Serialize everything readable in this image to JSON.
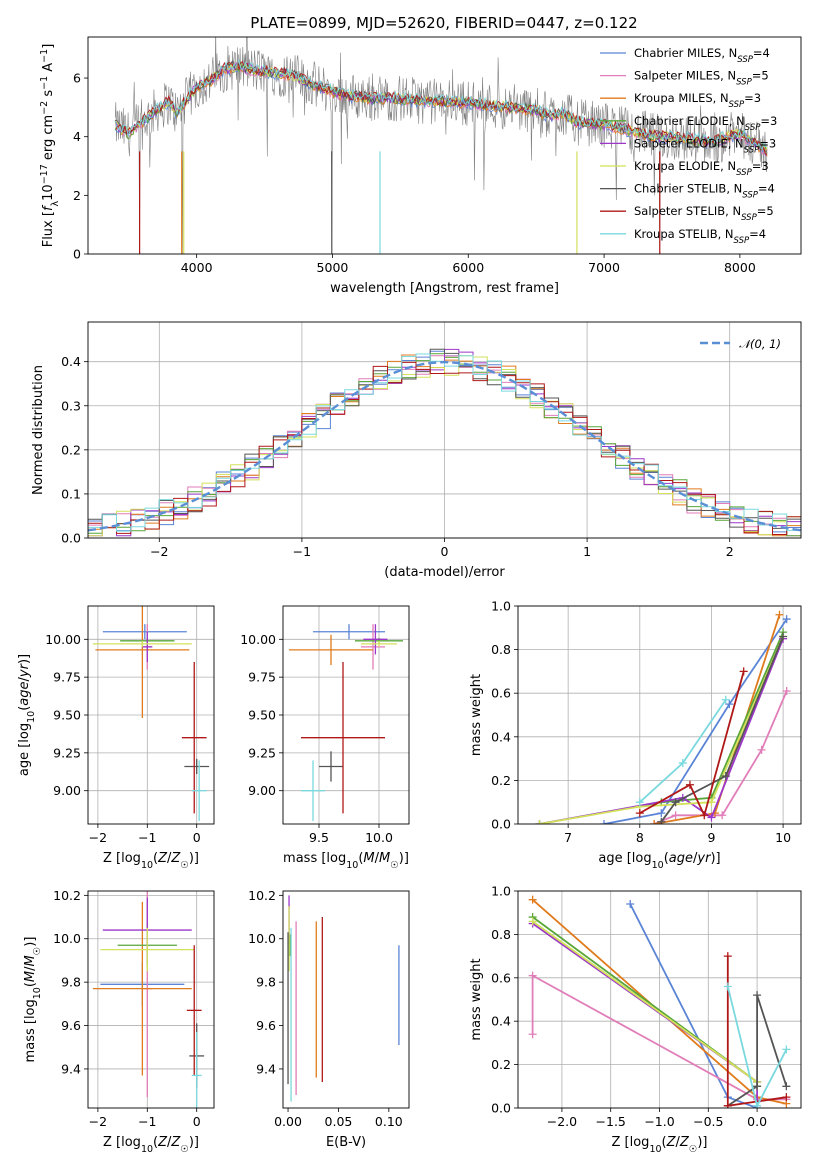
{
  "title": "PLATE=0899, MJD=52620, FIBERID=0447, z=0.122",
  "colors": {
    "Chabrier MILES": "#5b84d6",
    "Salpeter MILES": "#e17db8",
    "Kroupa MILES": "#e07b1d",
    "Chabrier ELODIE": "#59a63a",
    "Salpeter ELODIE": "#9c37c9",
    "Kroupa ELODIE": "#d3e15b",
    "Chabrier STELIB": "#555555",
    "Salpeter STELIB": "#b01818",
    "Kroupa STELIB": "#7ad9df",
    "data": "#808080",
    "normal": "#5b8fd5"
  },
  "chart_data": [
    {
      "id": "spectrum",
      "type": "line",
      "title": "PLATE=0899, MJD=52620, FIBERID=0447, z=0.122",
      "xlabel": "wavelength [Angstrom, rest frame]",
      "ylabel": "Flux [f_λ10⁻¹⁷ erg cm⁻² s⁻¹ A⁻¹]",
      "xlim": [
        3200,
        8450
      ],
      "ylim": [
        0,
        7.4
      ],
      "xticks": [
        4000,
        5000,
        6000,
        7000,
        8000
      ],
      "yticks": [
        0,
        2,
        4,
        6
      ],
      "grid": false,
      "legend_position": "top-right",
      "legend": [
        {
          "series": "Chabrier MILES",
          "base": "Chabrier MILES, N",
          "sub": "SSP",
          "tail": "=4"
        },
        {
          "series": "Salpeter MILES",
          "base": "Salpeter MILES, N",
          "sub": "SSP",
          "tail": "=5"
        },
        {
          "series": "Kroupa MILES",
          "base": "Kroupa MILES, N",
          "sub": "SSP",
          "tail": "=3"
        },
        {
          "series": "Chabrier ELODIE",
          "base": "Chabrier ELODIE, N",
          "sub": "SSP",
          "tail": "=3"
        },
        {
          "series": "Salpeter ELODIE",
          "base": "Salpeter ELODIE, N",
          "sub": "SSP",
          "tail": "=3"
        },
        {
          "series": "Kroupa ELODIE",
          "base": "Kroupa ELODIE, N",
          "sub": "SSP",
          "tail": "=3"
        },
        {
          "series": "Chabrier STELIB",
          "base": "Chabrier STELIB, N",
          "sub": "SSP",
          "tail": "=4"
        },
        {
          "series": "Salpeter STELIB",
          "base": "Salpeter STELIB, N",
          "sub": "SSP",
          "tail": "=5"
        },
        {
          "series": "Kroupa STELIB",
          "base": "Kroupa STELIB, N",
          "sub": "SSP",
          "tail": "=4"
        }
      ],
      "continuum_x": [
        3400,
        3500,
        3600,
        3700,
        3800,
        3850,
        3950,
        4000,
        4100,
        4200,
        4300,
        4400,
        4500,
        4700,
        4900,
        5100,
        5300,
        5500,
        5700,
        5900,
        6100,
        6300,
        6500,
        6600,
        6700,
        6800,
        7000,
        7200,
        7400,
        7600,
        7800,
        7900,
        8000,
        8200
      ],
      "continuum_y": [
        4.4,
        4.1,
        4.5,
        4.9,
        5.2,
        4.8,
        5.4,
        5.7,
        5.9,
        6.3,
        6.4,
        6.3,
        6.2,
        6.1,
        5.7,
        5.4,
        5.3,
        5.3,
        5.2,
        5.2,
        5.1,
        5.0,
        4.9,
        4.7,
        4.8,
        4.5,
        4.4,
        4.2,
        4.0,
        3.95,
        3.8,
        4.0,
        4.1,
        3.5
      ],
      "absorption_spikes": [
        {
          "x": 3580,
          "series": "Salpeter STELIB"
        },
        {
          "x": 3890,
          "series": "Kroupa MILES"
        },
        {
          "x": 3905,
          "series": "Kroupa ELODIE"
        },
        {
          "x": 4995,
          "series": "Chabrier STELIB"
        },
        {
          "x": 5350,
          "series": "Kroupa STELIB"
        },
        {
          "x": 6800,
          "series": "Kroupa ELODIE"
        },
        {
          "x": 7410,
          "series": "Salpeter STELIB"
        }
      ]
    },
    {
      "id": "residuals",
      "type": "line",
      "xlabel": "(data-model)/error",
      "ylabel": "Normed distribution",
      "xlim": [
        -2.5,
        2.5
      ],
      "ylim": [
        0,
        0.49
      ],
      "xticks": [
        -2,
        -1,
        0,
        1,
        2
      ],
      "yticks": [
        0.0,
        0.1,
        0.2,
        0.3,
        0.4
      ],
      "grid": true,
      "legend_position": "top-right",
      "legend_label": "𝒩(0, 1)",
      "bin_width": 0.1,
      "bins_start": -2.5
    },
    {
      "id": "age-vs-Z",
      "type": "scatter",
      "xlabel": "Z [log10(Z/Z☉)]",
      "ylabel": "age  [log10(age/yr)]",
      "xlim": [
        -2.2,
        0.35
      ],
      "ylim": [
        8.78,
        10.22
      ],
      "xticks": [
        -2,
        -1,
        0
      ],
      "yticks": [
        9.0,
        9.25,
        9.5,
        9.75,
        10.0
      ],
      "grid": true,
      "points": [
        {
          "series": "Chabrier MILES",
          "x": -1.05,
          "xerr": 0.85,
          "y": 10.05,
          "yerr": 0.05
        },
        {
          "series": "Salpeter MILES",
          "x": -1.0,
          "xerr": 0.1,
          "y": 9.95,
          "yerr": 0.15
        },
        {
          "series": "Kroupa MILES",
          "x": -1.1,
          "xerr": 0.95,
          "y": 9.93,
          "yerr": 0.45
        },
        {
          "series": "Chabrier ELODIE",
          "x": -1.0,
          "xerr": 0.55,
          "y": 9.99,
          "yerr": 0.02
        },
        {
          "series": "Salpeter ELODIE",
          "x": -1.0,
          "xerr": 0.1,
          "y": 9.95,
          "yerr": 0.1
        },
        {
          "series": "Kroupa ELODIE",
          "x": -1.1,
          "xerr": 1.0,
          "y": 9.97,
          "yerr": 0.02
        },
        {
          "series": "Chabrier STELIB",
          "x": 0.0,
          "xerr": 0.25,
          "y": 9.16,
          "yerr": 0.05
        },
        {
          "series": "Salpeter STELIB",
          "x": -0.05,
          "xerr": 0.25,
          "y": 9.35,
          "yerr": 0.5
        },
        {
          "series": "Kroupa STELIB",
          "x": 0.05,
          "xerr": 0.15,
          "y": 9.0,
          "yerr": 0.2
        }
      ]
    },
    {
      "id": "age-vs-mass",
      "type": "scatter",
      "xlabel": "mass [log10(M/M☉)]",
      "ylabel": "",
      "xlim": [
        9.2,
        10.25
      ],
      "ylim": [
        8.78,
        10.22
      ],
      "xticks": [
        9.5,
        10.0
      ],
      "yticks": [
        9.0,
        9.25,
        9.5,
        9.75,
        10.0
      ],
      "grid": true,
      "points": [
        {
          "series": "Chabrier MILES",
          "x": 9.75,
          "xerr": 0.3,
          "y": 10.05,
          "yerr": 0.05
        },
        {
          "series": "Salpeter MILES",
          "x": 9.95,
          "xerr": 0.1,
          "y": 9.95,
          "yerr": 0.15
        },
        {
          "series": "Kroupa MILES",
          "x": 9.6,
          "xerr": 0.35,
          "y": 9.93,
          "yerr": 0.1
        },
        {
          "series": "Chabrier ELODIE",
          "x": 10.0,
          "xerr": 0.2,
          "y": 9.99,
          "yerr": 0.02
        },
        {
          "series": "Salpeter ELODIE",
          "x": 9.97,
          "xerr": 0.1,
          "y": 10.0,
          "yerr": 0.1
        },
        {
          "series": "Kroupa ELODIE",
          "x": 10.0,
          "xerr": 0.15,
          "y": 9.97,
          "yerr": 0.02
        },
        {
          "series": "Chabrier STELIB",
          "x": 9.6,
          "xerr": 0.1,
          "y": 9.16,
          "yerr": 0.1
        },
        {
          "series": "Salpeter STELIB",
          "x": 9.7,
          "xerr": 0.35,
          "y": 9.35,
          "yerr": 0.5
        },
        {
          "series": "Kroupa STELIB",
          "x": 9.45,
          "xerr": 0.1,
          "y": 9.0,
          "yerr": 0.2
        }
      ]
    },
    {
      "id": "mass-weight-vs-age",
      "type": "line",
      "xlabel": "age  [log10(age/yr)]",
      "ylabel": "mass weight",
      "xlim": [
        6.3,
        10.25
      ],
      "ylim": [
        0,
        1.0
      ],
      "xticks": [
        7,
        8,
        9,
        10
      ],
      "yticks": [
        0.0,
        0.2,
        0.4,
        0.6,
        0.8,
        1.0
      ],
      "grid": true,
      "series": [
        {
          "name": "Chabrier MILES",
          "x": [
            7.5,
            8.3,
            9.25,
            10.05
          ],
          "y": [
            0.0,
            0.05,
            0.55,
            0.94
          ]
        },
        {
          "name": "Salpeter MILES",
          "x": [
            8.2,
            8.5,
            9.15,
            9.7,
            10.05
          ],
          "y": [
            0.0,
            0.04,
            0.04,
            0.34,
            0.61
          ]
        },
        {
          "name": "Kroupa MILES",
          "x": [
            8.2,
            9.05,
            9.95
          ],
          "y": [
            0.0,
            0.05,
            0.96
          ]
        },
        {
          "name": "Chabrier ELODIE",
          "x": [
            6.6,
            8.3,
            9.0,
            10.0
          ],
          "y": [
            0.0,
            0.1,
            0.12,
            0.88
          ]
        },
        {
          "name": "Salpeter ELODIE",
          "x": [
            6.6,
            8.6,
            9.0,
            10.0
          ],
          "y": [
            0.0,
            0.12,
            0.03,
            0.85
          ]
        },
        {
          "name": "Kroupa ELODIE",
          "x": [
            6.6,
            8.0,
            9.0,
            10.0
          ],
          "y": [
            0.0,
            0.08,
            0.1,
            0.86
          ]
        },
        {
          "name": "Chabrier STELIB",
          "x": [
            8.3,
            8.5,
            9.2,
            10.0
          ],
          "y": [
            0.01,
            0.1,
            0.22,
            0.86
          ]
        },
        {
          "name": "Salpeter STELIB",
          "x": [
            8.0,
            8.7,
            8.9,
            9.45
          ],
          "y": [
            0.05,
            0.18,
            0.04,
            0.7
          ]
        },
        {
          "name": "Kroupa STELIB",
          "x": [
            8.0,
            8.6,
            9.2
          ],
          "y": [
            0.1,
            0.28,
            0.57
          ]
        }
      ]
    },
    {
      "id": "mass-vs-Z",
      "type": "scatter",
      "xlabel": "Z [log10(Z/Z☉)]",
      "ylabel": "mass [log10(M/M☉)]",
      "xlim": [
        -2.2,
        0.35
      ],
      "ylim": [
        9.22,
        10.22
      ],
      "xticks": [
        -2,
        -1,
        0
      ],
      "yticks": [
        9.4,
        9.6,
        9.8,
        10.0,
        10.2
      ],
      "grid": true,
      "points": [
        {
          "series": "Chabrier MILES",
          "x": -1.1,
          "xerr": 0.85,
          "y": 9.79,
          "yerr": 0.1
        },
        {
          "series": "Salpeter MILES",
          "x": -1.0,
          "xerr": 0.1,
          "y": 9.77,
          "yerr": 0.5
        },
        {
          "series": "Kroupa MILES",
          "x": -1.1,
          "xerr": 1.0,
          "y": 9.77,
          "yerr": 0.4
        },
        {
          "series": "Chabrier ELODIE",
          "x": -1.0,
          "xerr": 0.6,
          "y": 9.97,
          "yerr": 0.1
        },
        {
          "series": "Salpeter ELODIE",
          "x": -1.0,
          "xerr": 0.9,
          "y": 10.04,
          "yerr": 0.15
        },
        {
          "series": "Kroupa ELODIE",
          "x": -1.0,
          "xerr": 0.95,
          "y": 9.95,
          "yerr": 0.1
        },
        {
          "series": "Chabrier STELIB",
          "x": 0.0,
          "xerr": 0.15,
          "y": 9.46,
          "yerr": 0.15
        },
        {
          "series": "Salpeter STELIB",
          "x": -0.05,
          "xerr": 0.15,
          "y": 9.67,
          "yerr": 0.3
        },
        {
          "series": "Kroupa STELIB",
          "x": 0.0,
          "xerr": 0.1,
          "y": 9.37,
          "yerr": 0.2
        }
      ]
    },
    {
      "id": "mass-vs-EBV",
      "type": "scatter",
      "xlabel": "E(B-V)",
      "ylabel": "",
      "xlim": [
        -0.005,
        0.12
      ],
      "ylim": [
        9.22,
        10.22
      ],
      "xticks": [
        0.0,
        0.05,
        0.1
      ],
      "yticks": [
        9.4,
        9.6,
        9.8,
        10.0,
        10.2
      ],
      "grid": false,
      "points": [
        {
          "series": "Chabrier MILES",
          "x": 0.11,
          "y": 9.74,
          "yerr": 0.23
        },
        {
          "series": "Salpeter MILES",
          "x": 0.008,
          "y": 9.68,
          "yerr": 0.4
        },
        {
          "series": "Kroupa MILES",
          "x": 0.028,
          "y": 9.72,
          "yerr": 0.36
        },
        {
          "series": "Chabrier ELODIE",
          "x": 0.002,
          "y": 9.97,
          "yerr": 0.05
        },
        {
          "series": "Salpeter ELODIE",
          "x": 0.001,
          "y": 10.1,
          "yerr": 0.1
        },
        {
          "series": "Kroupa ELODIE",
          "x": 0.001,
          "y": 10.0,
          "yerr": 0.15
        },
        {
          "series": "Chabrier STELIB",
          "x": 0.0,
          "y": 9.68,
          "yerr": 0.35
        },
        {
          "series": "Salpeter STELIB",
          "x": 0.034,
          "y": 9.72,
          "yerr": 0.38
        },
        {
          "series": "Kroupa STELIB",
          "x": 0.003,
          "y": 9.65,
          "yerr": 0.4
        }
      ]
    },
    {
      "id": "mass-weight-vs-Z",
      "type": "line",
      "xlabel": "Z [log10(Z/Z☉)]",
      "ylabel": "mass weight",
      "xlim": [
        -2.45,
        0.45
      ],
      "ylim": [
        0,
        1.0
      ],
      "xticks": [
        -2.0,
        -1.5,
        -1.0,
        -0.5,
        0.0
      ],
      "yticks": [
        0.0,
        0.2,
        0.4,
        0.6,
        0.8,
        1.0
      ],
      "grid": true,
      "series": [
        {
          "name": "Chabrier MILES",
          "x": [
            -1.3,
            -0.3,
            0.0
          ],
          "y": [
            0.94,
            0.05,
            0.0
          ]
        },
        {
          "name": "Salpeter MILES",
          "x": [
            -2.3,
            -2.3,
            0.0,
            0.3
          ],
          "y": [
            0.34,
            0.61,
            0.04,
            0.04
          ]
        },
        {
          "name": "Kroupa MILES",
          "x": [
            -2.3,
            0.0,
            0.3
          ],
          "y": [
            0.96,
            0.05,
            0.02
          ]
        },
        {
          "name": "Chabrier ELODIE",
          "x": [
            -2.3,
            0.0,
            0.0
          ],
          "y": [
            0.88,
            0.12,
            0.1
          ]
        },
        {
          "name": "Salpeter ELODIE",
          "x": [
            -2.3,
            0.0,
            0.0
          ],
          "y": [
            0.85,
            0.12,
            0.03
          ]
        },
        {
          "name": "Kroupa ELODIE",
          "x": [
            -2.3,
            0.0,
            0.0
          ],
          "y": [
            0.86,
            0.12,
            0.1
          ]
        },
        {
          "name": "Chabrier STELIB",
          "x": [
            -0.3,
            0.0,
            0.0,
            0.3
          ],
          "y": [
            0.01,
            0.1,
            0.52,
            0.1
          ]
        },
        {
          "name": "Salpeter STELIB",
          "x": [
            -0.3,
            -0.3,
            0.3
          ],
          "y": [
            0.7,
            0.01,
            0.05
          ]
        },
        {
          "name": "Kroupa STELIB",
          "x": [
            -0.3,
            0.0,
            0.3
          ],
          "y": [
            0.56,
            0.01,
            0.27
          ]
        }
      ]
    }
  ]
}
